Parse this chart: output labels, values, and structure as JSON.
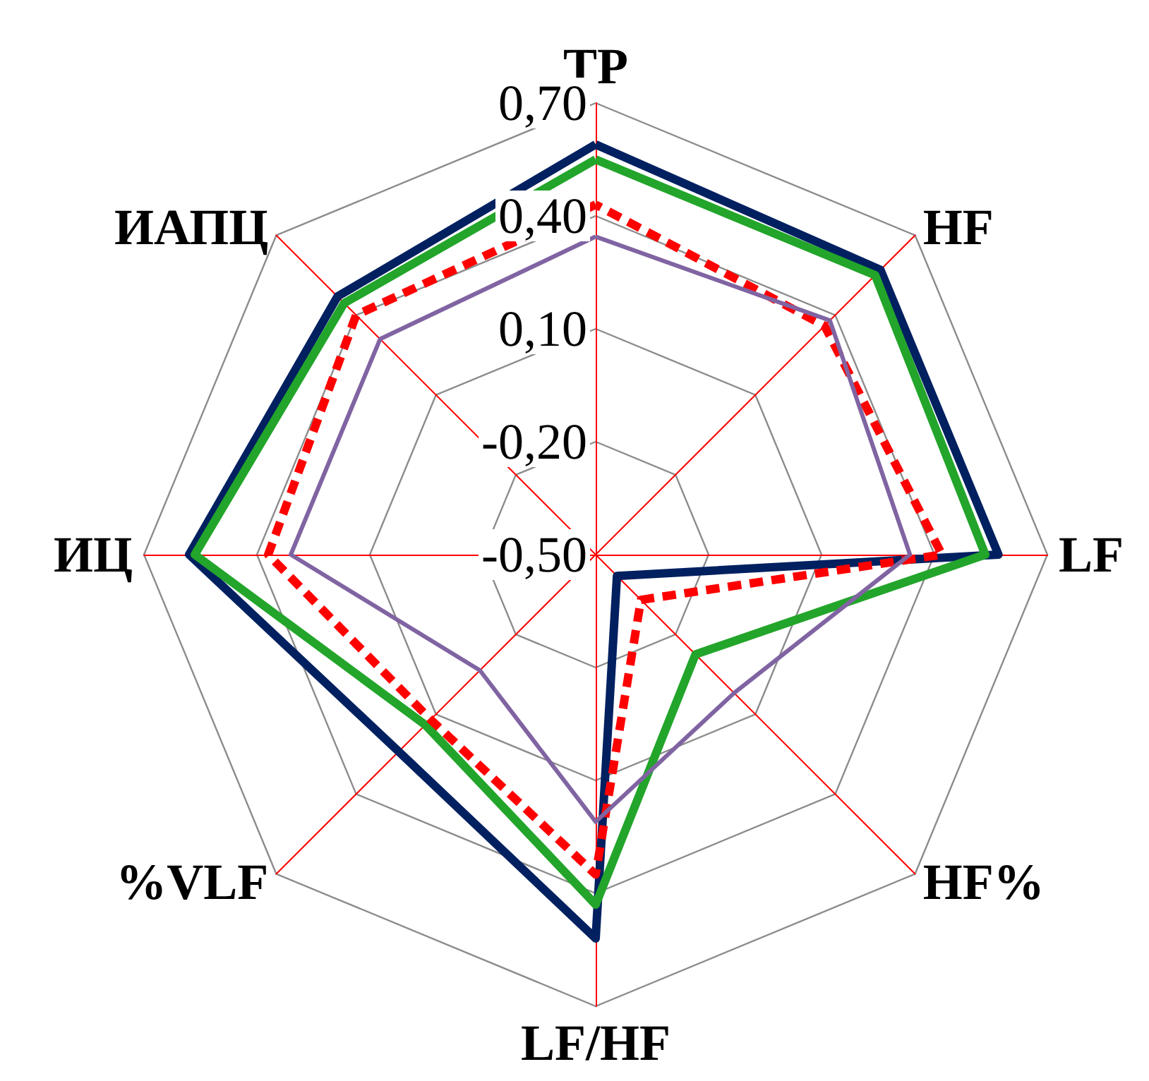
{
  "chart_data": {
    "type": "radar",
    "categories": [
      "TP",
      "HF",
      "LF",
      "HF%",
      "LF/HF",
      "%VLF",
      "ИЦ",
      "ИАПЦ"
    ],
    "ylim": [
      -0.5,
      0.7
    ],
    "yticks": [
      {
        "value": -0.5,
        "label": "-0,50"
      },
      {
        "value": -0.2,
        "label": "-0,20"
      },
      {
        "value": 0.1,
        "label": "0,10"
      },
      {
        "value": 0.4,
        "label": "0,40"
      },
      {
        "value": 0.7,
        "label": "0,70"
      }
    ],
    "grid": true,
    "marker": "none",
    "series": [
      {
        "color": "#002060",
        "values": [
          0.59,
          0.57,
          0.57,
          -0.42,
          0.52,
          0.24,
          0.58,
          0.47
        ]
      },
      {
        "color": "#22a52a",
        "values": [
          0.55,
          0.55,
          0.535,
          -0.125,
          0.43,
          0.14,
          0.565,
          0.445
        ]
      },
      {
        "color": "#ff0000",
        "line_style": "dashed",
        "values": [
          0.43,
          0.36,
          0.42,
          -0.33,
          0.35,
          0.12,
          0.37,
          0.4
        ]
      },
      {
        "color": "#8064a2",
        "values": [
          0.345,
          0.38,
          0.335,
          0.02,
          0.21,
          -0.065,
          0.31,
          0.31
        ]
      }
    ]
  }
}
